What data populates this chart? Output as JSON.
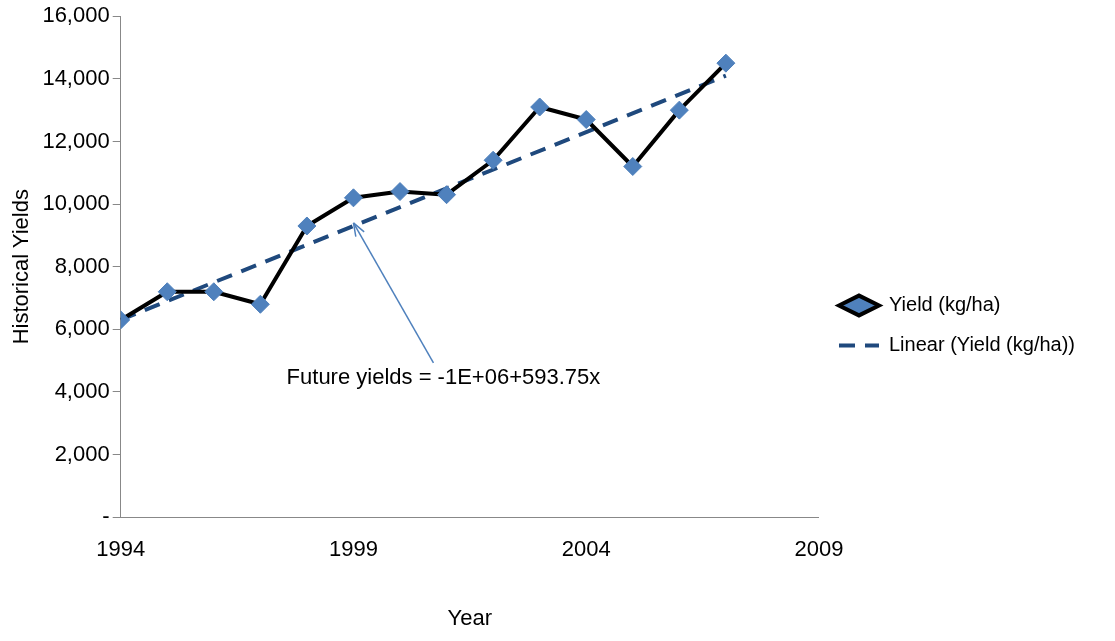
{
  "chart_data": {
    "type": "line",
    "xlabel": "Year",
    "ylabel": "Historical Yields",
    "xlim": [
      1994,
      2009
    ],
    "xticks": [
      1994,
      1999,
      2004,
      2009
    ],
    "ylim": [
      0,
      16000
    ],
    "yticks": [
      {
        "value": 0,
        "label": "-"
      },
      {
        "value": 2000,
        "label": "2,000"
      },
      {
        "value": 4000,
        "label": "4,000"
      },
      {
        "value": 6000,
        "label": "6,000"
      },
      {
        "value": 8000,
        "label": "8,000"
      },
      {
        "value": 10000,
        "label": "10,000"
      },
      {
        "value": 12000,
        "label": "12,000"
      },
      {
        "value": 14000,
        "label": "14,000"
      },
      {
        "value": 16000,
        "label": "16,000"
      }
    ],
    "grid": false,
    "legend": "right",
    "series": [
      {
        "name": "Yield (kg/ha)",
        "color": "#000000",
        "colors": [
          "#4f81bd",
          "#4f81bd",
          "#4f81bd",
          "#4f81bd",
          "#4f81bd",
          "#4f81bd",
          "#4f81bd",
          "#4f81bd",
          "#4f81bd",
          "#4f81bd",
          "#4f81bd",
          "#4f81bd",
          "#4f81bd",
          "#4f81bd"
        ],
        "marker": "diamond",
        "line_style": "solid",
        "x": [
          1994,
          1995,
          1996,
          1997,
          1998,
          1999,
          2000,
          2001,
          2002,
          2003,
          2004,
          2005,
          2006,
          2007
        ],
        "values": [
          6300,
          7200,
          7200,
          6800,
          9300,
          10200,
          10400,
          10300,
          11400,
          13100,
          12700,
          11200,
          13000,
          14500
        ]
      },
      {
        "name": "Linear (Yield (kg/ha))",
        "color": "#1f497d",
        "marker": "none",
        "line_style": "dashed",
        "x": [
          1994,
          2007
        ],
        "values": [
          6300,
          14100
        ]
      }
    ],
    "annotations": [
      {
        "text": "Future yields = -1E+06+593.75x",
        "x": 1999,
        "y": 9400
      }
    ]
  }
}
